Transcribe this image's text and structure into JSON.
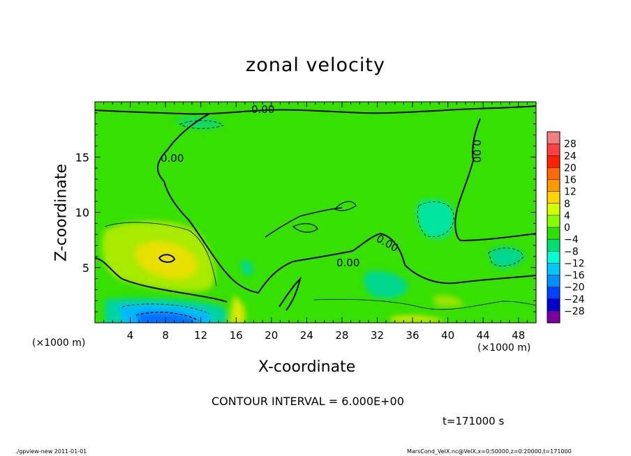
{
  "chart_data": {
    "type": "heatmap",
    "title": "zonal velocity",
    "xlabel": "X-coordinate",
    "ylabel": "Z-coordinate",
    "x_unit_label": "(×1000 m)",
    "xlim": [
      0,
      50
    ],
    "ylim": [
      0,
      20
    ],
    "x_ticks": [
      4,
      8,
      12,
      16,
      20,
      24,
      28,
      32,
      36,
      40,
      44,
      48
    ],
    "y_ticks": [
      5,
      10,
      15
    ],
    "colorbar": {
      "levels": [
        28,
        24,
        20,
        16,
        12,
        8,
        4,
        0,
        -4,
        -8,
        -12,
        -16,
        -20,
        -24,
        -28
      ],
      "labels": [
        "28",
        "24",
        "20",
        "16",
        "12",
        "8",
        "4",
        "0",
        "−4",
        "−8",
        "−12",
        "−16",
        "−20",
        "−24",
        "−28"
      ],
      "colors": [
        "#f08080",
        "#ff4040",
        "#ff2000",
        "#ff6a00",
        "#ff9900",
        "#ffd400",
        "#d2ff00",
        "#86ff00",
        "#2fe000",
        "#00e070",
        "#00ffd2",
        "#00c8ff",
        "#0090ff",
        "#0040ff",
        "#0000d0",
        "#7a00a0"
      ]
    },
    "contour_labels": [
      "0.00",
      "0.00",
      "0.00",
      "0.00",
      "0.00"
    ],
    "contour_interval_note": "CONTOUR INTERVAL = 6.000E+00",
    "time_note": "t=171000 s"
  },
  "footer": {
    "left": "./gpview-new   2011-01-01",
    "right": "MarsCond_VelX.nc@VelX,x=0:50000,z=0:20000,t=171000"
  }
}
